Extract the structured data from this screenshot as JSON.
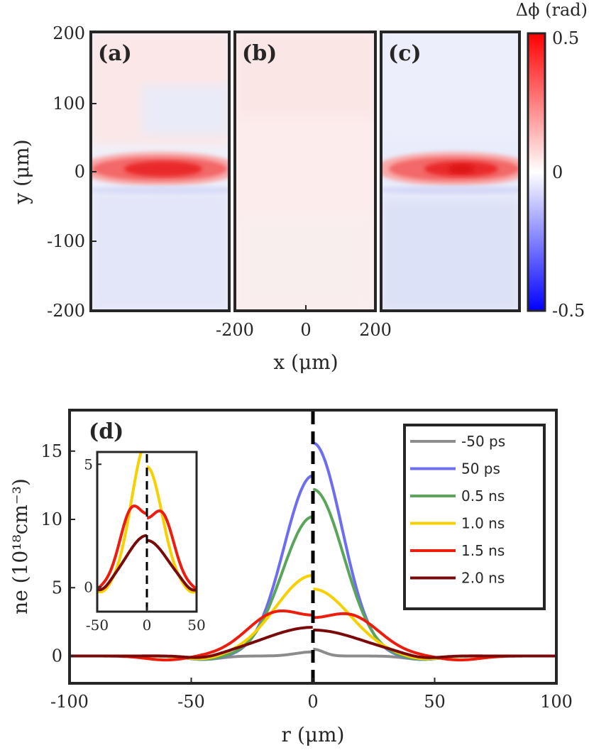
{
  "chart_data": [
    {
      "type": "heatmap",
      "panels": [
        {
          "label": "(a)",
          "profile": "left"
        },
        {
          "label": "(b)",
          "profile": "flat"
        },
        {
          "label": "(c)",
          "profile": "right"
        }
      ],
      "xlabel": "x (μm)",
      "ylabel": "y (μm)",
      "x_ticks": [
        "-200",
        "0",
        "200"
      ],
      "y_ticks": [
        "200",
        "100",
        "0",
        "-100",
        "-200"
      ],
      "xlim": [
        -200,
        200
      ],
      "ylim": [
        -200,
        200
      ],
      "colorbar": {
        "label": "Δϕ (rad)",
        "ticks": [
          "0.5",
          "0",
          "-0.5"
        ],
        "range": [
          -0.5,
          0.5
        ],
        "colormap": [
          "#0000ff",
          "#ffffff",
          "#ff0000"
        ]
      }
    },
    {
      "type": "line",
      "label": "(d)",
      "xlabel": "r (μm)",
      "ylabel": "ne (10¹⁸cm⁻³)",
      "xlim": [
        -100,
        100
      ],
      "ylim": [
        -2,
        18
      ],
      "x_ticks": [
        "-100",
        "-50",
        "0",
        "50",
        "100"
      ],
      "y_ticks": [
        "0",
        "5",
        "10",
        "15"
      ],
      "legend_position": "top-right",
      "series": [
        {
          "name": "-50 ps",
          "color": "#8c8c8c",
          "left_peak": 0.3,
          "right_peak": 0.5,
          "left_sigma": 10,
          "right_sigma": 6
        },
        {
          "name": "50 ps",
          "color": "#6d6df2",
          "left_peak": 13.2,
          "right_peak": 15.6,
          "left_sigma": 17,
          "right_sigma": 17
        },
        {
          "name": "0.5 ns",
          "color": "#5aa55a",
          "left_peak": 10.2,
          "right_peak": 12.2,
          "left_sigma": 18,
          "right_sigma": 18
        },
        {
          "name": "1.0 ns",
          "color": "#f7d000",
          "left_peak": 5.9,
          "right_peak": 4.9,
          "left_sigma": 22,
          "right_sigma": 22
        },
        {
          "name": "1.5 ns",
          "color": "#ee1c0c",
          "left_peak": 3.3,
          "right_peak": 3.1,
          "left_sigma": 26,
          "right_sigma": 26
        },
        {
          "name": "2.0 ns",
          "color": "#7a0a0a",
          "left_peak": 2.1,
          "right_peak": 1.9,
          "left_sigma": 29,
          "right_sigma": 29
        }
      ],
      "inset": {
        "xlim": [
          -50,
          50
        ],
        "ylim": [
          -1,
          5.5
        ],
        "x_ticks": [
          "-50",
          "0",
          "50"
        ],
        "y_ticks": [
          "0",
          "5"
        ]
      }
    }
  ]
}
